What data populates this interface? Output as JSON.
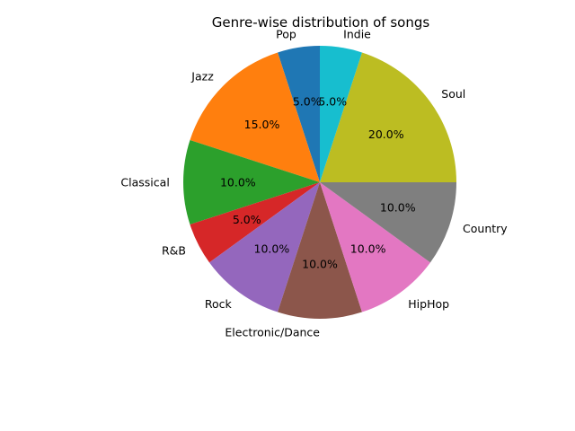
{
  "chart_data": {
    "type": "pie",
    "title": "Genre-wise distribution of songs",
    "slices": [
      {
        "label": "Pop",
        "value": 5.0,
        "pct_label": "5.0%",
        "color": "#1f77b4"
      },
      {
        "label": "Jazz",
        "value": 15.0,
        "pct_label": "15.0%",
        "color": "#ff7f0e"
      },
      {
        "label": "Classical",
        "value": 10.0,
        "pct_label": "10.0%",
        "color": "#2ca02c"
      },
      {
        "label": "R&B",
        "value": 5.0,
        "pct_label": "5.0%",
        "color": "#d62728"
      },
      {
        "label": "Rock",
        "value": 10.0,
        "pct_label": "10.0%",
        "color": "#9467bd"
      },
      {
        "label": "Electronic/Dance",
        "value": 10.0,
        "pct_label": "10.0%",
        "color": "#8c564b"
      },
      {
        "label": "HipHop",
        "value": 10.0,
        "pct_label": "10.0%",
        "color": "#e377c2"
      },
      {
        "label": "Country",
        "value": 10.0,
        "pct_label": "10.0%",
        "color": "#7f7f7f"
      },
      {
        "label": "Soul",
        "value": 20.0,
        "pct_label": "20.0%",
        "color": "#bcbd22"
      },
      {
        "label": "Indie",
        "value": 5.0,
        "pct_label": "5.0%",
        "color": "#17becf"
      }
    ],
    "start_angle_deg": 90,
    "direction": "counterclockwise"
  }
}
